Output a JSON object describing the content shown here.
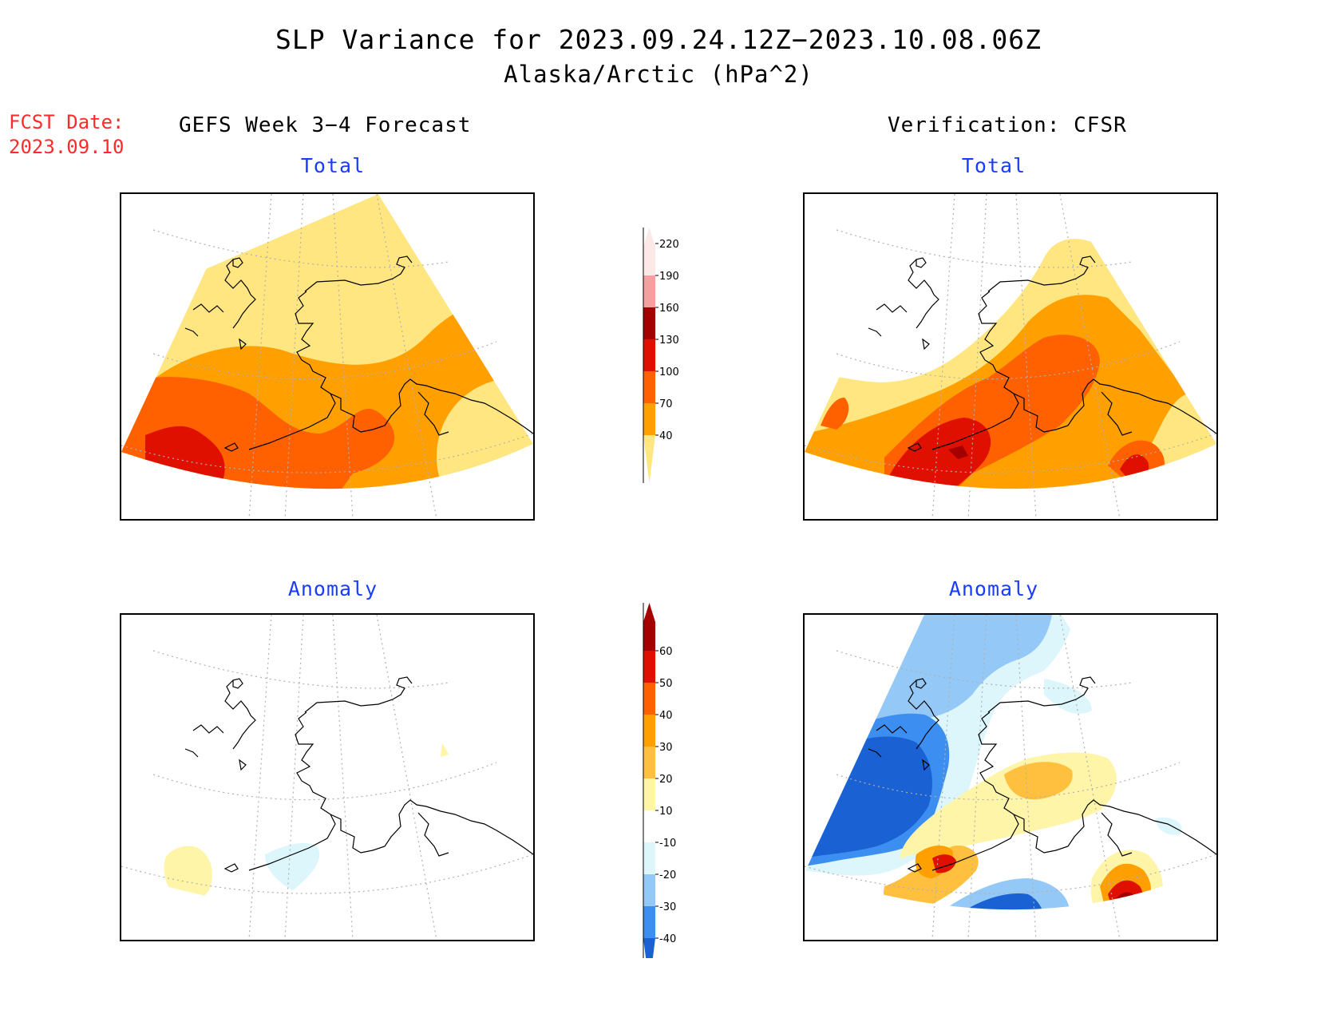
{
  "title": {
    "line1": "SLP Variance for 2023.09.24.12Z−2023.10.08.06Z",
    "line2": "Alaska/Arctic (hPa^2)"
  },
  "forecast_date": {
    "label": "FCST Date:",
    "value": "2023.09.10"
  },
  "columns": {
    "left_heading": "GEFS Week 3−4 Forecast",
    "right_heading": "Verification: CFSR"
  },
  "panels": {
    "total_label": "Total",
    "anomaly_label": "Anomaly"
  },
  "colorbars": {
    "total": {
      "levels": [
        "40",
        "70",
        "100",
        "130",
        "160",
        "190",
        "220"
      ],
      "colors": [
        "#ffe680",
        "#ffa000",
        "#ff6000",
        "#e01000",
        "#a50000",
        "#f4a0a0",
        "#fde8e8"
      ]
    },
    "anomaly": {
      "levels": [
        "-40",
        "-30",
        "-20",
        "-10",
        "10",
        "20",
        "30",
        "40",
        "50",
        "60"
      ],
      "colors": [
        "#1a62d4",
        "#3c8ff0",
        "#94c8f6",
        "#dcf6fc",
        "#ffffff",
        "#fff5a8",
        "#ffc040",
        "#ffa000",
        "#ff6000",
        "#e01000",
        "#a50000"
      ]
    }
  },
  "colors": {
    "title": "#000000",
    "fcst_date": "#ff2a2a",
    "subtitle": "#1a3cff"
  }
}
